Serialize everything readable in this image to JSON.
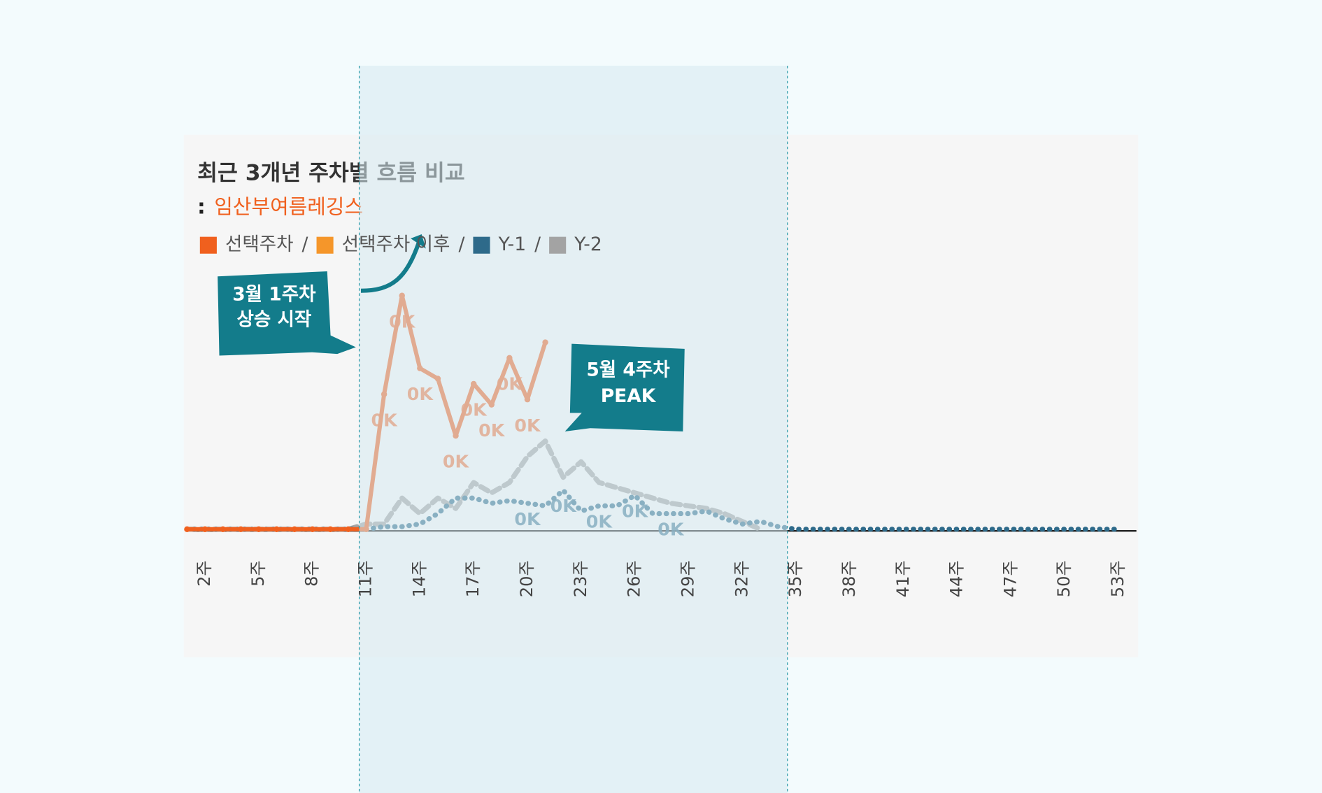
{
  "chart_data": {
    "type": "line",
    "title": "최근 3개년 주차별 흐름 비교",
    "subtitle": {
      "marker": ":",
      "text": "임산부여름레깅스"
    },
    "legend_separator": "/",
    "categories": [
      null,
      "2주",
      null,
      null,
      "5주",
      null,
      null,
      "8주",
      null,
      null,
      "11주",
      null,
      null,
      "14주",
      null,
      null,
      "17주",
      null,
      null,
      "20주",
      null,
      null,
      "23주",
      null,
      null,
      "26주",
      null,
      null,
      "29주",
      null,
      null,
      "32주",
      null,
      null,
      "35주",
      null,
      null,
      "38주",
      null,
      null,
      "41주",
      null,
      null,
      "44주",
      null,
      null,
      "47주",
      null,
      null,
      "50주",
      null,
      null,
      "53주"
    ],
    "ylim": [
      0,
      0.5
    ],
    "series": [
      {
        "name": "선택주차",
        "color": "#f0601e",
        "style": "solid",
        "values": [
          0,
          0,
          0,
          0,
          0,
          0,
          0,
          0,
          0,
          0,
          0,
          0.26,
          0.45,
          0.31,
          0.29,
          0.18,
          0.28,
          0.24,
          0.33,
          0.25,
          0.36,
          null,
          null,
          null,
          null,
          null,
          null,
          null,
          null,
          null,
          null,
          null,
          null,
          null,
          null,
          null,
          null,
          null,
          null,
          null,
          null,
          null,
          null,
          null,
          null,
          null,
          null,
          null,
          null,
          null,
          null,
          null,
          null
        ],
        "value_labels": [
          null,
          null,
          null,
          null,
          null,
          null,
          null,
          null,
          null,
          null,
          null,
          "0K",
          "0K",
          "0K",
          null,
          "0K",
          "0K",
          "0K",
          "0K",
          "0K",
          null,
          null,
          null,
          null,
          null,
          null,
          null,
          null,
          null,
          null,
          null,
          null,
          null,
          null,
          null,
          null,
          null,
          null,
          null,
          null,
          null,
          null,
          null,
          null,
          null,
          null,
          null,
          null,
          null,
          null,
          null,
          null,
          null
        ]
      },
      {
        "name": "선택주차 이후",
        "color": "#f5962a"
      },
      {
        "name": "Y-1",
        "color": "#2e6a8a",
        "style": "dotted",
        "values": [
          0,
          0,
          0,
          0,
          0,
          0,
          0,
          0,
          0,
          0,
          0,
          0.005,
          0.005,
          0.01,
          0.03,
          0.06,
          0.06,
          0.05,
          0.055,
          0.05,
          0.045,
          0.075,
          0.035,
          0.045,
          0.045,
          0.065,
          0.03,
          0.03,
          0.03,
          0.035,
          0.02,
          0.01,
          0.015,
          0.005,
          0,
          0,
          0,
          0,
          0,
          0,
          0,
          0,
          0,
          0,
          0,
          0,
          0,
          0,
          0,
          0,
          0,
          0,
          0
        ],
        "value_labels": [
          null,
          null,
          null,
          null,
          null,
          null,
          null,
          null,
          null,
          null,
          null,
          null,
          null,
          null,
          null,
          null,
          null,
          null,
          null,
          "0K",
          null,
          "0K",
          null,
          "0K",
          null,
          "0K",
          null,
          "0K",
          null,
          null,
          null,
          null,
          null,
          null,
          null,
          null,
          null,
          null,
          null,
          null,
          null,
          null,
          null,
          null,
          null,
          null,
          null,
          null,
          null,
          null,
          null,
          null,
          null
        ]
      },
      {
        "name": "Y-2",
        "color": "#a3a3a3",
        "style": "dashed",
        "values": [
          0,
          0,
          0,
          0,
          0,
          0,
          0,
          0,
          0,
          0,
          0.01,
          0.01,
          0.06,
          0.03,
          0.06,
          0.04,
          0.09,
          0.07,
          0.09,
          0.14,
          0.17,
          0.1,
          0.13,
          0.09,
          0.08,
          0.07,
          0.06,
          0.05,
          0.045,
          0.04,
          0.03,
          0.015,
          0,
          null,
          null,
          null,
          null,
          null,
          null,
          null,
          null,
          null,
          null,
          null,
          null,
          null,
          null,
          null,
          null,
          null,
          null,
          null,
          null
        ]
      }
    ],
    "annotations": [
      {
        "lines": [
          "3월 1주차",
          "상승 시작"
        ]
      },
      {
        "lines": [
          "5월 4주차",
          "PEAK"
        ]
      }
    ]
  }
}
